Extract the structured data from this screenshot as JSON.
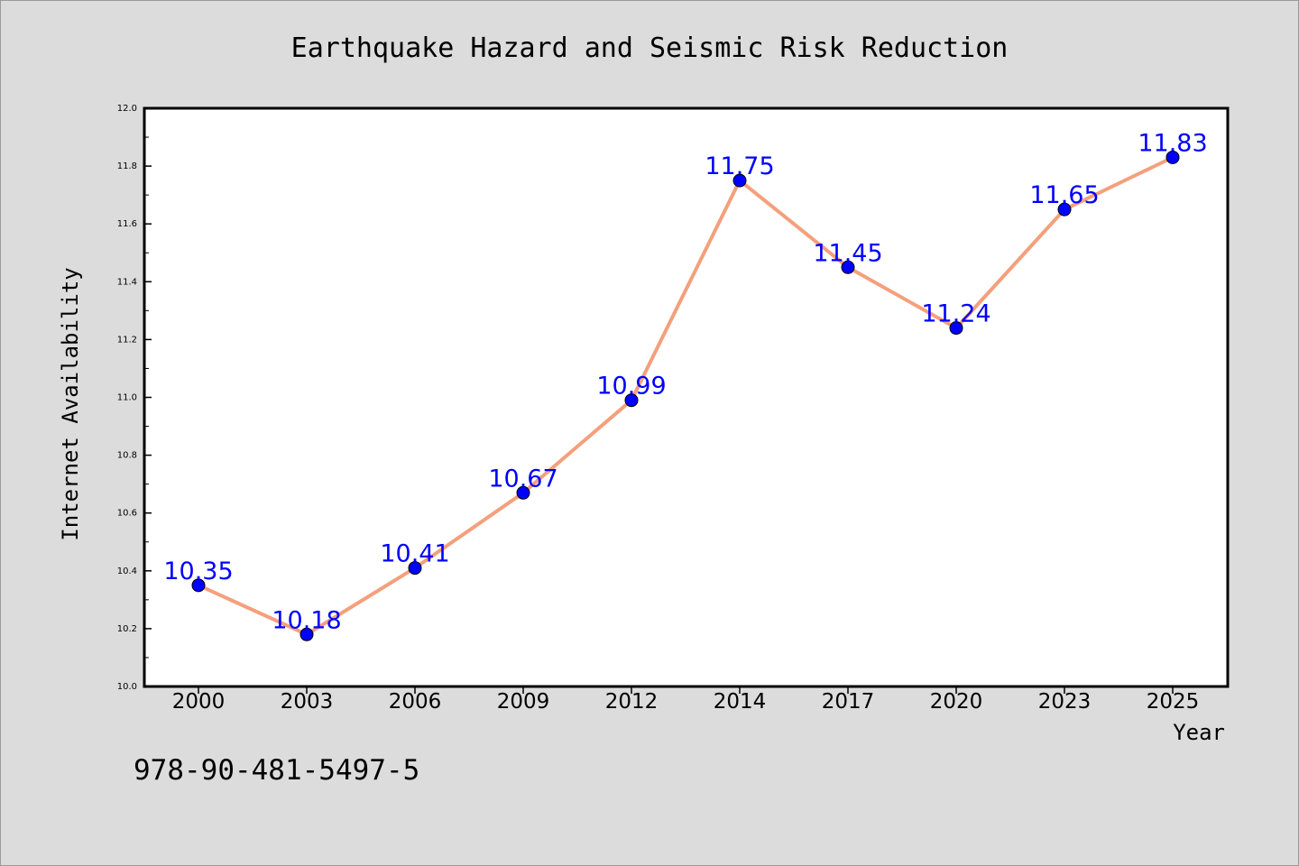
{
  "chart_data": {
    "type": "line",
    "title": "Earthquake Hazard and Seismic Risk Reduction",
    "xlabel": "Year",
    "ylabel": "Internet Availability",
    "categories": [
      "2000",
      "2003",
      "2006",
      "2009",
      "2012",
      "2014",
      "2017",
      "2020",
      "2023",
      "2025"
    ],
    "series": [
      {
        "values": [
          10.35,
          10.18,
          10.41,
          10.67,
          10.99,
          11.75,
          11.45,
          11.24,
          11.65,
          11.83
        ],
        "line_color": "#f4a07c",
        "marker_color": "#0000ff",
        "label_color": "#0000ff"
      }
    ],
    "data_labels": [
      "10.35",
      "10.18",
      "10.41",
      "10.67",
      "10.99",
      "11.75",
      "11.45",
      "11.24",
      "11.65",
      "11.83"
    ],
    "ylim": [
      10.0,
      12.0
    ],
    "yticks": [
      "10.0",
      "10.2",
      "10.4",
      "10.6",
      "10.8",
      "11.0",
      "11.2",
      "11.4",
      "11.6",
      "11.8",
      "12.0"
    ],
    "grid": false,
    "legend": "none"
  },
  "footer": {
    "isbn": "978-90-481-5497-5"
  }
}
